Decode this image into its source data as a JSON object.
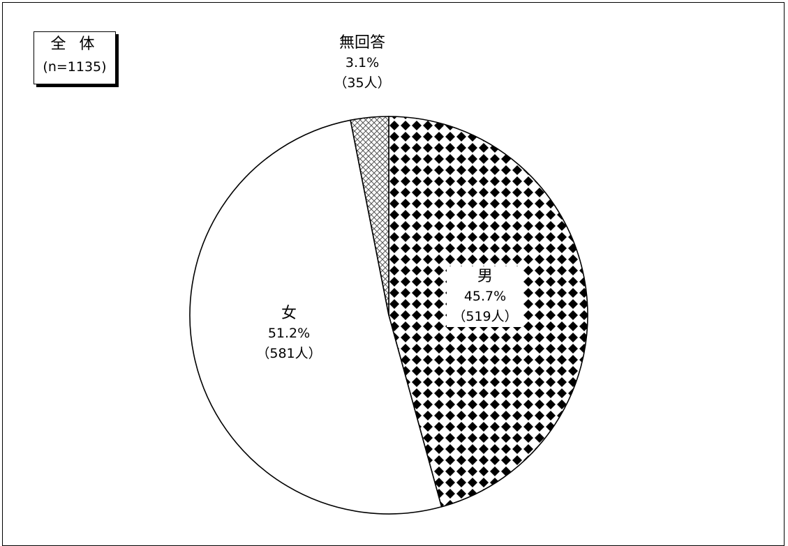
{
  "chart_data": {
    "type": "pie",
    "title": "全 体",
    "subtitle": "(n=1135)",
    "slices": [
      {
        "label": "男",
        "percent_label": "45.7%",
        "count_label": "（519人）",
        "value": 519,
        "percent": 45.7,
        "pattern": "black-diamond-checker"
      },
      {
        "label": "女",
        "percent_label": "51.2%",
        "count_label": "（581人）",
        "value": 581,
        "percent": 51.2,
        "pattern": "white"
      },
      {
        "label": "無回答",
        "percent_label": "3.1%",
        "count_label": "（35人）",
        "value": 35,
        "percent": 3.1,
        "pattern": "cross-hatch"
      }
    ],
    "start_angle_note": "clockwise from 12 o'clock",
    "colors": {
      "border": "#000000",
      "fill_white": "#ffffff",
      "diamond": "#000000",
      "hatch": "#555555"
    }
  }
}
